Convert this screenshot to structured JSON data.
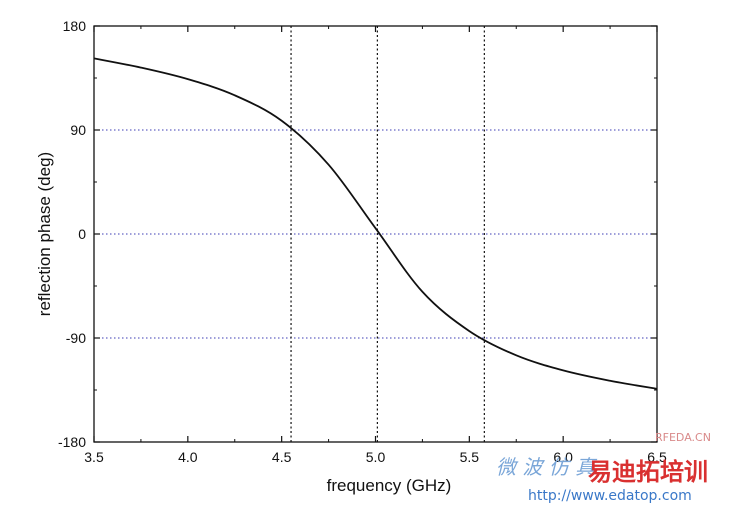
{
  "chart_data": {
    "type": "line",
    "title": "",
    "xlabel": "frequency (GHz)",
    "ylabel": "reflection phase (deg)",
    "xlim": [
      3.5,
      6.5
    ],
    "ylim": [
      -180,
      180
    ],
    "xticks": [
      3.5,
      4.0,
      4.5,
      5.0,
      5.5,
      6.0,
      6.5
    ],
    "xtick_labels": [
      "3.5",
      "4.0",
      "4.5",
      "5.0",
      "5.5",
      "6.0",
      "6.5"
    ],
    "yticks": [
      -180,
      -90,
      0,
      90,
      180
    ],
    "ytick_labels": [
      "-180",
      "-90",
      "0",
      "90",
      "180"
    ],
    "horizontal_reference_lines": [
      90,
      0,
      -90
    ],
    "vertical_reference_lines": [
      4.55,
      5.01,
      5.58
    ],
    "series": [
      {
        "x": [
          3.5,
          3.75,
          4.0,
          4.25,
          4.5,
          4.75,
          5.0,
          5.25,
          5.5,
          5.75,
          6.0,
          6.25,
          6.5
        ],
        "y": [
          152,
          144,
          134,
          120,
          98,
          60,
          5,
          -50,
          -84,
          -105,
          -118,
          -127,
          -134
        ]
      }
    ],
    "legend": "none",
    "grid": false
  },
  "watermark": {
    "site_text": "RFEDA.CN",
    "line1": "微 波 仿 真",
    "brand": "易迪拓培训",
    "url": "http://www.edatop.com"
  },
  "colors": {
    "curve": "#111111",
    "vertical_ref": "#111111",
    "horizontal_ref": "#3c3cb4",
    "watermark_blue": "#7aa6d8",
    "watermark_red": "#d93030"
  }
}
